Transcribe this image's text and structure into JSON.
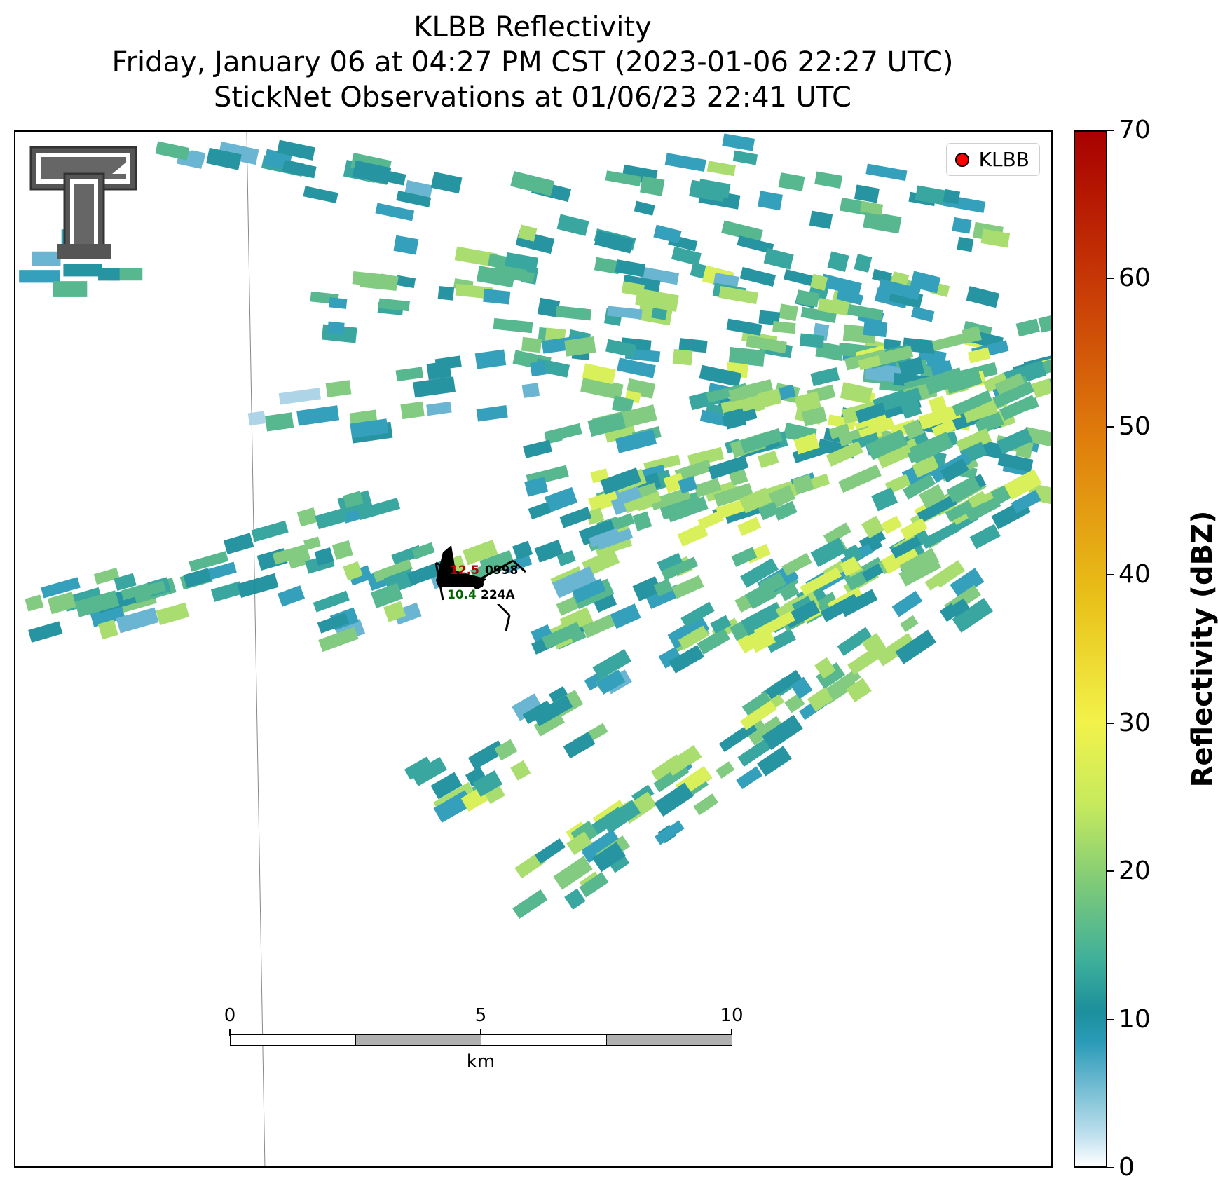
{
  "title": {
    "line1": "KLBB Reflectivity",
    "line2": "Friday, January 06 at 04:27 PM CST (2023-01-06 22:27 UTC)",
    "line3": "StickNet Observations at 01/06/23 22:41 UTC"
  },
  "legend": {
    "label": "KLBB",
    "marker_color": "#ff0000"
  },
  "colorbar": {
    "label": "Reflectivity (dBZ)",
    "ticks": [
      "0",
      "10",
      "20",
      "30",
      "40",
      "50",
      "60",
      "70"
    ],
    "min": 0,
    "max": 70
  },
  "scalebar": {
    "ticks": [
      "0",
      "5",
      "10"
    ],
    "unit": "km",
    "segment_colors": [
      "#ffffff",
      "#b0b0b0",
      "#ffffff",
      "#b0b0b0"
    ]
  },
  "stations": [
    {
      "id": "0998",
      "value": "12.5",
      "value_color": "#b00000"
    },
    {
      "id": "224A",
      "value": "10.4",
      "value_color": "#006600"
    }
  ],
  "logo": {
    "icon": "texas-tech-double-t-logo"
  }
}
